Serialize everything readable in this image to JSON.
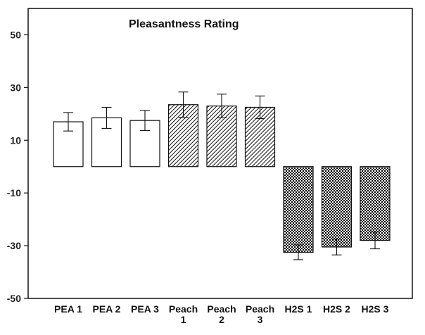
{
  "chart_data": {
    "type": "bar",
    "title": "Pleasantness Rating",
    "xlabel": "",
    "ylabel": "",
    "ylim": [
      -50,
      60
    ],
    "yticks": [
      50,
      30,
      10,
      -10,
      -30,
      -50
    ],
    "grid": false,
    "categories": [
      [
        "PEA 1"
      ],
      [
        "PEA 2"
      ],
      [
        "PEA 3"
      ],
      [
        "Peach",
        "1"
      ],
      [
        "Peach",
        "2"
      ],
      [
        "Peach",
        "3"
      ],
      [
        "H2S 1"
      ],
      [
        "H2S 2"
      ],
      [
        "H2S 3"
      ]
    ],
    "values": [
      17,
      18.5,
      17.5,
      23.5,
      23,
      22.5,
      -32.5,
      -30.5,
      -28
    ],
    "error": [
      3.5,
      4,
      3.8,
      4.8,
      4.5,
      4.3,
      2.8,
      3,
      3.2
    ],
    "fills": [
      "white",
      "white",
      "white",
      "hatch",
      "hatch",
      "hatch",
      "checker",
      "checker",
      "checker"
    ]
  }
}
